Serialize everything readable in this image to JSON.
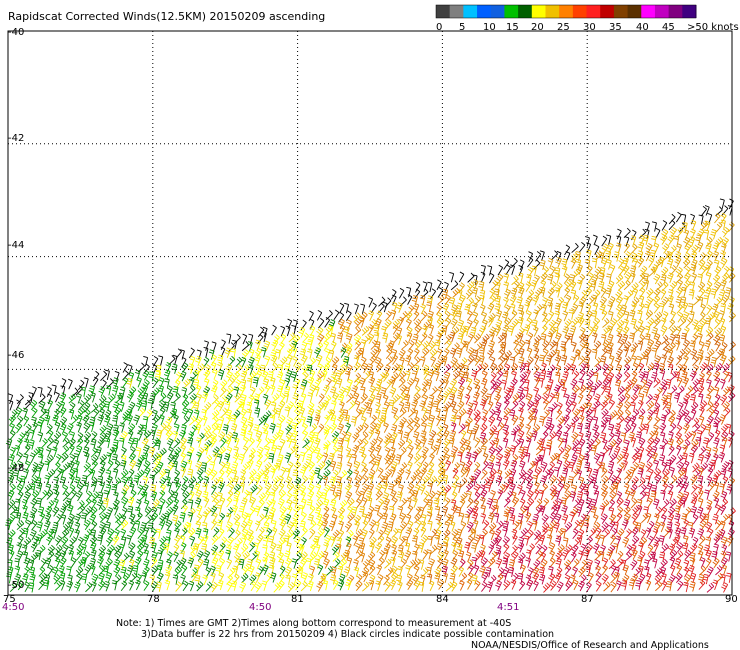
{
  "title": "Rapidscat Corrected Winds(12.5KM) 20150209 ascending",
  "colorbar": {
    "labels": [
      "0",
      "5",
      "10",
      "15",
      "20",
      "25",
      "30",
      "35",
      "40",
      "45",
      ">50 knots"
    ],
    "colors": [
      "#404040",
      "#7f7f7f",
      "#00c0ff",
      "#0060ff",
      "#1060e0",
      "#00c000",
      "#006000",
      "#ffff00",
      "#f0c000",
      "#ff8000",
      "#ff4000",
      "#ff2020",
      "#c00000",
      "#804000",
      "#5a3000",
      "#ff00ff",
      "#c000c0",
      "#800080",
      "#400080"
    ]
  },
  "y_axis": {
    "ticks": [
      "-40",
      "-42",
      "-44",
      "-46",
      "-48",
      "-50"
    ]
  },
  "x_axis": {
    "ticks": [
      "75",
      "78",
      "81",
      "84",
      "87",
      "90"
    ]
  },
  "times": [
    "4:50",
    "4:50",
    "4:51"
  ],
  "notes": [
    "Note: 1) Times are GMT 2)Times along bottom correspond to measurement at -40S",
    "3)Data buffer is 22 hrs from 20150209 4) Black circles indicate possible contamination",
    "NOAA/NESDIS/Office of Research and Applications"
  ],
  "chart_data": {
    "type": "wind-barb map",
    "title": "Rapidscat Corrected Winds(12.5KM) 20150209 ascending",
    "lon_range": [
      75,
      90
    ],
    "lat_range": [
      -40,
      -50
    ],
    "grid": true,
    "swath_edge": [
      {
        "lon": 75,
        "lat": -46.6
      },
      {
        "lon": 90,
        "lat": -43.1
      }
    ],
    "wind_speed_knots_regions": [
      {
        "region": "swath edge",
        "color": "black",
        "speed": "contaminated"
      },
      {
        "region": "75-80.5E",
        "color": "green",
        "speed": "15-20"
      },
      {
        "region": "78-82E",
        "color": "yellow",
        "speed": "20-25"
      },
      {
        "region": "81-84E",
        "color": "orange",
        "speed": "25-30"
      },
      {
        "region": "84-90E, -46 to -50",
        "color": "red",
        "speed": "30-35"
      }
    ]
  }
}
